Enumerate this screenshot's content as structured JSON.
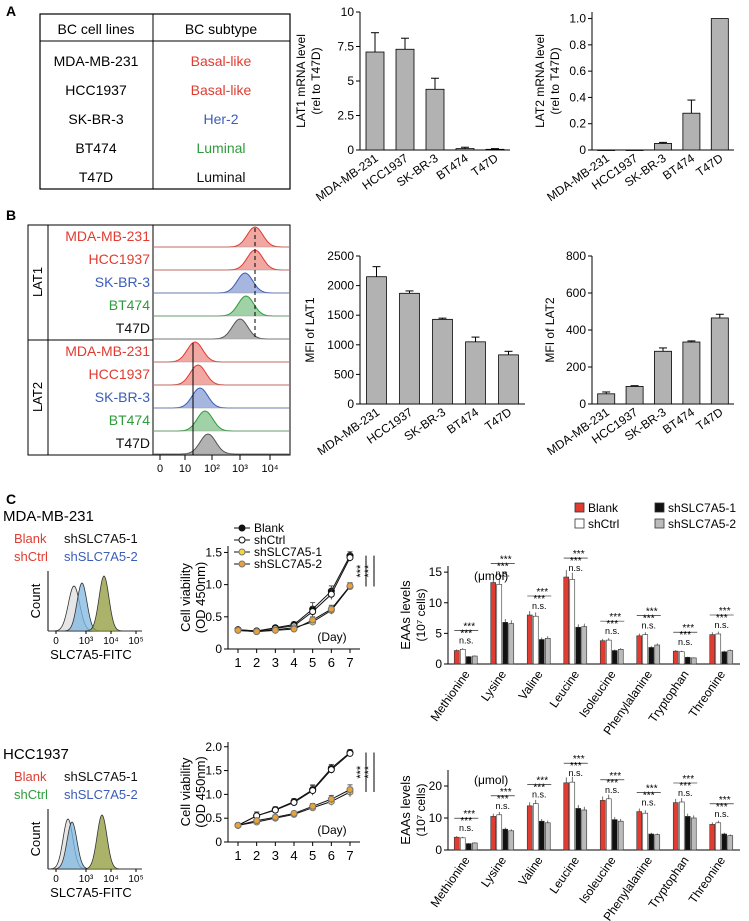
{
  "colors": {
    "red": "#e03c31",
    "blue": "#3b5db8",
    "green": "#2e9b3c",
    "black": "#111111",
    "bar_gray": "#b2b2b2",
    "yellow": "#f2d93a",
    "orange": "#e8a23a",
    "olive": "#8f9a3a"
  },
  "panels": {
    "a": "A",
    "b": "B",
    "c": "C"
  },
  "table": {
    "headers": [
      "BC cell lines",
      "BC subtype"
    ],
    "rows": [
      {
        "line": "MDA-MB-231",
        "subtype": "Basal-like",
        "color": "#e03c31"
      },
      {
        "line": "HCC1937",
        "subtype": "Basal-like",
        "color": "#e03c31"
      },
      {
        "line": "SK-BR-3",
        "subtype": "Her-2",
        "color": "#3b5db8"
      },
      {
        "line": "BT474",
        "subtype": "Luminal",
        "color": "#2e9b3c"
      },
      {
        "line": "T47D",
        "subtype": "Luminal",
        "color": "#111111"
      }
    ]
  },
  "histogram_b": {
    "group_labels": [
      "LAT1",
      "LAT2"
    ],
    "rows": [
      {
        "label": "MDA-MB-231",
        "color": "#e03c31"
      },
      {
        "label": "HCC1937",
        "color": "#e03c31"
      },
      {
        "label": "SK-BR-3",
        "color": "#3b5db8"
      },
      {
        "label": "BT474",
        "color": "#2e9b3c"
      },
      {
        "label": "T47D",
        "color": "#111111"
      }
    ],
    "xticks": [
      "0",
      "10",
      "10²",
      "10³",
      "10⁴"
    ]
  },
  "section_c": {
    "mda": {
      "title": "MDA-MB-231",
      "legend": [
        {
          "label": "Blank",
          "color": "#e03c31"
        },
        {
          "label": "shSLC7A5-1",
          "color": "#111111"
        },
        {
          "label": "shCtrl",
          "color": "#e03c31"
        },
        {
          "label": "shSLC7A5-2",
          "color": "#3b5db8"
        }
      ],
      "xticks": [
        "0",
        "10³",
        "10⁴",
        "10⁵"
      ]
    },
    "hcc": {
      "title": "HCC1937",
      "legend": [
        {
          "label": "Blank",
          "color": "#e03c31"
        },
        {
          "label": "shSLC7A5-1",
          "color": "#111111"
        },
        {
          "label": "shCtrl",
          "color": "#2e9b3c"
        },
        {
          "label": "shSLC7A5-2",
          "color": "#3b5db8"
        }
      ],
      "xticks": [
        "0",
        "10³",
        "10⁴",
        "10⁵"
      ]
    },
    "flow_ylabel": "Count",
    "flow_xlabel": "SLC7A5-FITC"
  },
  "chart_data": [
    {
      "type": "bar",
      "id": "lat1_mrna",
      "categories": [
        "MDA-MB-231",
        "HCC1937",
        "SK-BR-3",
        "BT474",
        "T47D"
      ],
      "values": [
        7.1,
        7.3,
        4.4,
        0.1,
        0.05
      ],
      "errors": [
        1.4,
        0.8,
        0.8,
        0.1,
        0.05
      ],
      "ylabel": "LAT1 mRNA level",
      "ylabel2": "(rel to T47D)",
      "ylim": [
        0,
        10
      ],
      "yticks": [
        "0",
        "2.5",
        "5",
        "7.5",
        "10"
      ]
    },
    {
      "type": "bar",
      "id": "lat2_mrna",
      "categories": [
        "MDA-MB-231",
        "HCC1937",
        "SK-BR-3",
        "BT474",
        "T47D"
      ],
      "values": [
        0.0,
        0.0,
        0.05,
        0.28,
        1.0
      ],
      "errors": [
        0.0,
        0.0,
        0.008,
        0.1,
        0.0
      ],
      "ylabel": "LAT2 mRNA level",
      "ylabel2": "(rel to T47D)",
      "ylim": [
        0,
        1.05
      ],
      "yticks": [
        "0",
        "0.2",
        "0.4",
        "0.6",
        "0.8",
        "1.0"
      ]
    },
    {
      "type": "bar",
      "id": "lat1_mfi",
      "categories": [
        "MDA-MB-231",
        "HCC1937",
        "SK-BR-3",
        "BT474",
        "T47D"
      ],
      "values": [
        2150,
        1870,
        1430,
        1050,
        830
      ],
      "errors": [
        170,
        40,
        20,
        80,
        60
      ],
      "ylabel": "MFI of LAT1",
      "ylabel2": "",
      "ylim": [
        0,
        2500
      ],
      "yticks": [
        "0",
        "500",
        "1000",
        "1500",
        "2000",
        "2500"
      ]
    },
    {
      "type": "bar",
      "id": "lat2_mfi",
      "categories": [
        "MDA-MB-231",
        "HCC1937",
        "SK-BR-3",
        "BT474",
        "T47D"
      ],
      "values": [
        55,
        95,
        285,
        335,
        465
      ],
      "errors": [
        10,
        4,
        18,
        6,
        20
      ],
      "ylabel": "MFI of LAT2",
      "ylabel2": "",
      "ylim": [
        0,
        800
      ],
      "yticks": [
        "0",
        "200",
        "400",
        "600",
        "800"
      ]
    },
    {
      "type": "line",
      "id": "viability_mda",
      "x": [
        1,
        2,
        3,
        4,
        5,
        6,
        7
      ],
      "xlabel": "(Day)",
      "ylabel": "Cell viability",
      "ylabel2": "(OD 450nm)",
      "ylim": [
        0,
        1.6
      ],
      "yticks": [
        "0",
        "0.5",
        "1.0",
        "1.5"
      ],
      "legend": [
        "Blank",
        "shCtrl",
        "shSLC7A5-1",
        "shSLC7A5-2"
      ],
      "significance": [
        "***",
        "***"
      ],
      "series": [
        {
          "name": "Blank",
          "values": [
            0.3,
            0.28,
            0.33,
            0.38,
            0.62,
            0.9,
            1.45
          ],
          "errors": [
            0.03,
            0.02,
            0.03,
            0.04,
            0.1,
            0.08,
            0.06
          ]
        },
        {
          "name": "shCtrl",
          "values": [
            0.3,
            0.28,
            0.32,
            0.36,
            0.58,
            0.85,
            1.42
          ],
          "errors": [
            0.03,
            0.02,
            0.03,
            0.04,
            0.08,
            0.08,
            0.06
          ]
        },
        {
          "name": "shSLC7A5-1",
          "values": [
            0.29,
            0.27,
            0.3,
            0.33,
            0.42,
            0.6,
            0.97
          ],
          "errors": [
            0.02,
            0.02,
            0.03,
            0.04,
            0.05,
            0.06,
            0.05
          ]
        },
        {
          "name": "shSLC7A5-2",
          "values": [
            0.29,
            0.27,
            0.29,
            0.31,
            0.45,
            0.62,
            0.98
          ],
          "errors": [
            0.02,
            0.02,
            0.03,
            0.04,
            0.05,
            0.06,
            0.05
          ]
        }
      ]
    },
    {
      "type": "line",
      "id": "viability_hcc",
      "x": [
        1,
        2,
        3,
        4,
        5,
        6,
        7
      ],
      "xlabel": "(Day)",
      "ylabel": "Cell viability",
      "ylabel2": "(OD 450nm)",
      "ylim": [
        0,
        2.1
      ],
      "yticks": [
        "0",
        "0.5",
        "1.0",
        "1.5",
        "2.0"
      ],
      "significance": [
        "***",
        "***"
      ],
      "series": [
        {
          "name": "Blank",
          "values": [
            0.35,
            0.55,
            0.68,
            0.85,
            1.1,
            1.55,
            1.88
          ],
          "errors": [
            0.02,
            0.08,
            0.06,
            0.06,
            0.1,
            0.08,
            0.06
          ]
        },
        {
          "name": "shCtrl",
          "values": [
            0.35,
            0.55,
            0.67,
            0.83,
            1.08,
            1.52,
            1.86
          ],
          "errors": [
            0.02,
            0.08,
            0.06,
            0.06,
            0.1,
            0.08,
            0.06
          ]
        },
        {
          "name": "shSLC7A5-1",
          "values": [
            0.35,
            0.42,
            0.5,
            0.58,
            0.72,
            0.85,
            1.05
          ],
          "errors": [
            0.02,
            0.05,
            0.05,
            0.05,
            0.06,
            0.08,
            0.1
          ]
        },
        {
          "name": "shSLC7A5-2",
          "values": [
            0.35,
            0.45,
            0.52,
            0.6,
            0.75,
            0.9,
            1.1
          ],
          "errors": [
            0.02,
            0.05,
            0.05,
            0.05,
            0.06,
            0.08,
            0.1
          ]
        }
      ]
    },
    {
      "type": "bar",
      "id": "eaas_mda",
      "categories": [
        "Methionine",
        "Lysine",
        "Valine",
        "Leucine",
        "Isoleucine",
        "Phenylalanine",
        "Tryptophan",
        "Threonine"
      ],
      "ylabel": "EAAs levels",
      "ylabel2": "(10⁷ cells)",
      "unit": "(μmol)",
      "ylim": [
        0,
        16
      ],
      "yticks": [
        "0",
        "5",
        "10",
        "15"
      ],
      "legend": [
        "Blank",
        "shSLC7A5-1",
        "shCtrl",
        "shSLC7A5-2"
      ],
      "annotations": [
        "***",
        "***",
        "n.s."
      ],
      "series": [
        {
          "name": "Blank",
          "values": [
            2.2,
            13.3,
            8.0,
            14.2,
            3.8,
            4.6,
            2.1,
            4.8
          ]
        },
        {
          "name": "shCtrl",
          "values": [
            2.4,
            13.0,
            7.8,
            13.8,
            3.9,
            4.8,
            2.0,
            4.9
          ]
        },
        {
          "name": "shSLC7A5-1",
          "values": [
            1.2,
            6.8,
            4.0,
            6.0,
            2.2,
            2.7,
            1.1,
            2.0
          ]
        },
        {
          "name": "shSLC7A5-2",
          "values": [
            1.3,
            6.6,
            4.2,
            6.1,
            2.4,
            3.1,
            1.0,
            2.2
          ]
        }
      ]
    },
    {
      "type": "bar",
      "id": "eaas_hcc",
      "categories": [
        "Methionine",
        "Lysine",
        "Valine",
        "Leucine",
        "Isoleucine",
        "Phenylalanine",
        "Tryptophan",
        "Threonine"
      ],
      "ylabel": "EAAs levels",
      "ylabel2": "(10⁷ cells)",
      "unit": "(μmol)",
      "ylim": [
        0,
        25
      ],
      "yticks": [
        "0",
        "10",
        "20"
      ],
      "annotations": [
        "***",
        "***",
        "n.s."
      ],
      "series": [
        {
          "name": "Blank",
          "values": [
            4.0,
            10.5,
            13.8,
            21.0,
            15.5,
            12.0,
            14.8,
            8.0
          ]
        },
        {
          "name": "shCtrl",
          "values": [
            3.8,
            11.0,
            14.5,
            21.2,
            16.0,
            11.5,
            15.0,
            8.5
          ]
        },
        {
          "name": "shSLC7A5-1",
          "values": [
            2.0,
            6.5,
            9.0,
            13.0,
            9.5,
            5.0,
            10.5,
            5.0
          ]
        },
        {
          "name": "shSLC7A5-2",
          "values": [
            2.2,
            6.0,
            8.5,
            12.5,
            9.0,
            4.8,
            10.0,
            4.5
          ]
        }
      ]
    }
  ]
}
